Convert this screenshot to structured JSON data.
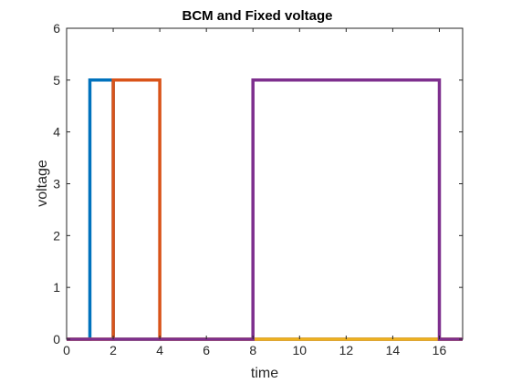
{
  "chart_data": {
    "type": "line",
    "title": "BCM and Fixed voltage",
    "xlabel": "time",
    "ylabel": "voltage",
    "xlim": [
      0,
      17
    ],
    "ylim": [
      0,
      6
    ],
    "xticks": [
      0,
      2,
      4,
      6,
      8,
      10,
      12,
      14,
      16
    ],
    "yticks": [
      0,
      1,
      2,
      3,
      4,
      5,
      6
    ],
    "grid": false,
    "box": true,
    "series": [
      {
        "color": "#0072BD",
        "x": [
          0,
          1,
          1,
          2,
          2,
          17
        ],
        "y": [
          0,
          0,
          5,
          5,
          0,
          0
        ]
      },
      {
        "color": "#D95319",
        "x": [
          0,
          2,
          2,
          4,
          4,
          17
        ],
        "y": [
          0,
          0,
          5,
          5,
          0,
          0
        ]
      },
      {
        "color": "#EDB120",
        "x": [
          0,
          17
        ],
        "y": [
          0,
          0
        ]
      },
      {
        "color": "#7E2F8E",
        "x": [
          0,
          8,
          8,
          16,
          16,
          17
        ],
        "y": [
          0,
          0,
          5,
          5,
          0,
          0
        ]
      }
    ]
  }
}
